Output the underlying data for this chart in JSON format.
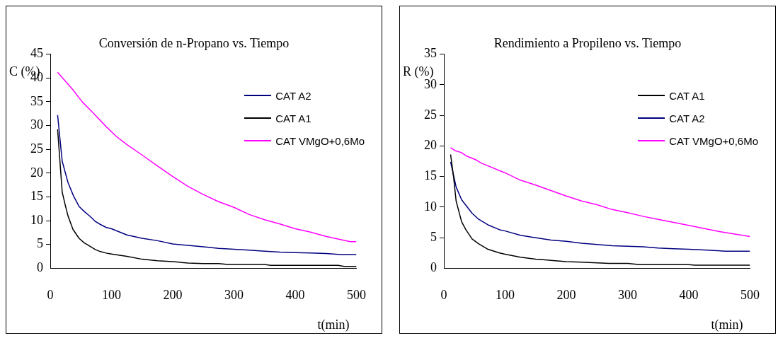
{
  "chart_data": [
    {
      "type": "line",
      "title": "Conversión de n-Propano vs. Tiempo",
      "xlabel": "t(min)",
      "ylabel": "C (%)",
      "xlim": [
        0,
        500
      ],
      "xticks": [
        0,
        100,
        200,
        300,
        400,
        500
      ],
      "ylim": [
        0,
        45
      ],
      "yticks": [
        0,
        5,
        10,
        15,
        20,
        25,
        30,
        35,
        40,
        45
      ],
      "grid": false,
      "legend": "top right",
      "marker": "none",
      "line_style": "solid",
      "series": [
        {
          "name": "CAT A2",
          "color": "#000080",
          "x": [
            12,
            19.5,
            29,
            38,
            47,
            55,
            65,
            74,
            82,
            91,
            100,
            125,
            150,
            175,
            200,
            225,
            250,
            275,
            300,
            325,
            350,
            375,
            400,
            425,
            450,
            475,
            500
          ],
          "values": [
            32.2,
            22.5,
            18,
            15.2,
            13,
            12,
            10.9,
            9.8,
            9.2,
            8.6,
            8.3,
            7,
            6.3,
            5.8,
            5.1,
            4.8,
            4.5,
            4.2,
            4,
            3.8,
            3.6,
            3.4,
            3.3,
            3.2,
            3.1,
            2.9,
            2.9
          ]
        },
        {
          "name": "CAT A1",
          "color": "#000000",
          "x": [
            12,
            19.5,
            25,
            29,
            37,
            47,
            55,
            65,
            74,
            82,
            91,
            100,
            125,
            150,
            175,
            200,
            225,
            250,
            275,
            290,
            350,
            360,
            470,
            480,
            500
          ],
          "values": [
            29.2,
            16,
            13,
            11,
            8.2,
            6.3,
            5.4,
            4.6,
            3.9,
            3.5,
            3.2,
            3,
            2.5,
            1.9,
            1.6,
            1.4,
            1.1,
            1,
            1,
            0.8,
            0.8,
            0.6,
            0.6,
            0.4,
            0.4
          ]
        },
        {
          "name": "CAT VMgO+0,6Mo",
          "color": "#ff00ff",
          "x": [
            12,
            37,
            52,
            69,
            91,
            108,
            125,
            150,
            175,
            200,
            225,
            250,
            275,
            300,
            325,
            350,
            375,
            400,
            425,
            450,
            475,
            490,
            500
          ],
          "values": [
            41.2,
            37.5,
            35,
            32.8,
            29.8,
            27.7,
            26,
            23.8,
            21.5,
            19.3,
            17.2,
            15.5,
            14,
            12.8,
            11.3,
            10.2,
            9.3,
            8.3,
            7.6,
            6.7,
            6,
            5.6,
            5.6
          ]
        }
      ]
    },
    {
      "type": "line",
      "title": "Rendimiento a Propileno vs. Tiempo",
      "xlabel": "t(min)",
      "ylabel": "R (%)",
      "xlim": [
        0,
        500
      ],
      "xticks": [
        0,
        100,
        200,
        300,
        400,
        500
      ],
      "ylim": [
        0,
        35
      ],
      "yticks": [
        0,
        5,
        10,
        15,
        20,
        25,
        30,
        35
      ],
      "grid": false,
      "legend": "top right",
      "marker": "none",
      "line_style": "solid",
      "series": [
        {
          "name": "CAT A1",
          "color": "#000000",
          "x": [
            11,
            16,
            20,
            29,
            36,
            46,
            57,
            72,
            91,
            100,
            125,
            150,
            175,
            200,
            225,
            270,
            300,
            320,
            400,
            410,
            500
          ],
          "values": [
            18.6,
            14.8,
            11,
            7.6,
            6.3,
            4.8,
            4,
            3.1,
            2.5,
            2.3,
            1.8,
            1.5,
            1.3,
            1.1,
            1,
            0.8,
            0.8,
            0.6,
            0.6,
            0.5,
            0.5
          ]
        },
        {
          "name": "CAT A2",
          "color": "#000080",
          "x": [
            11,
            20,
            29,
            46,
            57,
            72,
            91,
            100,
            125,
            150,
            175,
            200,
            225,
            250,
            275,
            300,
            325,
            350,
            375,
            400,
            425,
            460,
            500
          ],
          "values": [
            17.4,
            13.3,
            11.2,
            9,
            8,
            7.1,
            6.3,
            6.1,
            5.4,
            5,
            4.6,
            4.4,
            4.1,
            3.9,
            3.7,
            3.6,
            3.5,
            3.3,
            3.2,
            3.1,
            3,
            2.8,
            2.8
          ]
        },
        {
          "name": "CAT VMgO+0,6Mo",
          "color": "#ff00ff",
          "x": [
            11,
            19,
            29,
            36,
            53,
            61,
            100,
            125,
            150,
            175,
            200,
            225,
            250,
            275,
            300,
            325,
            350,
            375,
            400,
            420,
            450,
            475,
            500
          ],
          "values": [
            19.7,
            19.2,
            18.9,
            18.4,
            17.7,
            17.2,
            15.6,
            14.4,
            13.6,
            12.7,
            11.8,
            11,
            10.4,
            9.6,
            9.1,
            8.5,
            8,
            7.5,
            7,
            6.6,
            6,
            5.6,
            5.2
          ]
        }
      ]
    }
  ]
}
